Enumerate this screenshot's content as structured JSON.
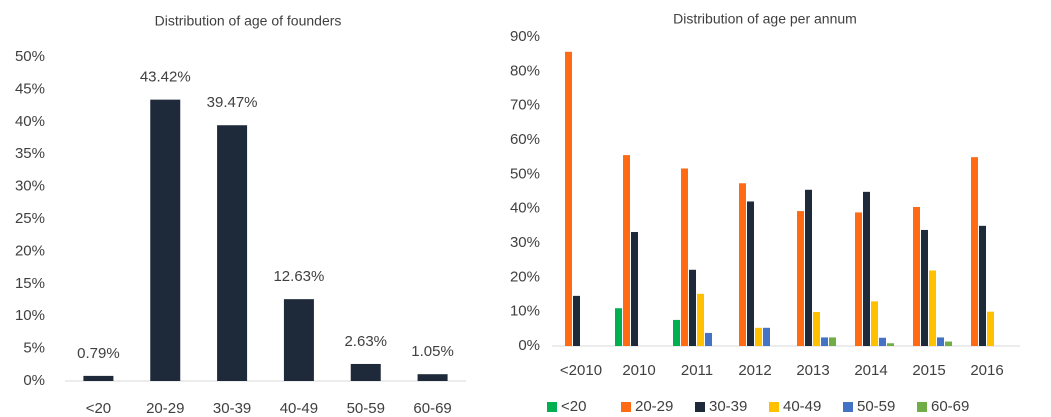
{
  "chart_data": [
    {
      "type": "bar",
      "title": "Distribution of age of founders",
      "categories": [
        "<20",
        "20-29",
        "30-39",
        "40-49",
        "50-59",
        "60-69"
      ],
      "values": [
        0.79,
        43.42,
        39.47,
        12.63,
        2.63,
        1.05
      ],
      "value_labels": [
        "0.79%",
        "43.42%",
        "39.47%",
        "12.63%",
        "2.63%",
        "1.05%"
      ],
      "color": "#1e2a3a",
      "ylim": [
        0,
        50
      ],
      "yticks": [
        {
          "value": 0,
          "label": "0%"
        },
        {
          "value": 5,
          "label": "5%"
        },
        {
          "value": 10,
          "label": "10%"
        },
        {
          "value": 15,
          "label": "15%"
        },
        {
          "value": 20,
          "label": "20%"
        },
        {
          "value": 25,
          "label": "25%"
        },
        {
          "value": 30,
          "label": "30%"
        },
        {
          "value": 35,
          "label": "35%"
        },
        {
          "value": 40,
          "label": "40%"
        },
        {
          "value": 45,
          "label": "45%"
        },
        {
          "value": 50,
          "label": "50%"
        }
      ],
      "grid": false
    },
    {
      "type": "grouped_bar",
      "title": "Distribution of age per annum",
      "categories": [
        "<2010",
        "2010",
        "2011",
        "2012",
        "2013",
        "2014",
        "2015",
        "2016"
      ],
      "series": [
        {
          "name": "<20",
          "color": "#00b050",
          "values": [
            0,
            11,
            7.6,
            0,
            0,
            0,
            0,
            0
          ]
        },
        {
          "name": "20-29",
          "color": "#ff6a13",
          "values": [
            85.7,
            55.6,
            51.7,
            47.4,
            39.3,
            38.9,
            40.5,
            55
          ]
        },
        {
          "name": "30-39",
          "color": "#1e2a3a",
          "values": [
            14.6,
            33.2,
            22.2,
            42.1,
            45.5,
            44.9,
            33.8,
            35
          ]
        },
        {
          "name": "40-49",
          "color": "#ffc000",
          "values": [
            0,
            0,
            15.2,
            5.3,
            9.9,
            13,
            22,
            10
          ]
        },
        {
          "name": "50-59",
          "color": "#4472c4",
          "values": [
            0,
            0,
            3.8,
            5.3,
            2.5,
            2.4,
            2.5,
            0
          ]
        },
        {
          "name": "60-69",
          "color": "#70ad47",
          "values": [
            0,
            0,
            0,
            0,
            2.5,
            0.8,
            1.3,
            0
          ]
        }
      ],
      "ylim": [
        0,
        90
      ],
      "yticks": [
        {
          "value": 0,
          "label": "0%"
        },
        {
          "value": 10,
          "label": "10%"
        },
        {
          "value": 20,
          "label": "20%"
        },
        {
          "value": 30,
          "label": "30%"
        },
        {
          "value": 40,
          "label": "40%"
        },
        {
          "value": 50,
          "label": "50%"
        },
        {
          "value": 60,
          "label": "60%"
        },
        {
          "value": 70,
          "label": "70%"
        },
        {
          "value": 80,
          "label": "80%"
        },
        {
          "value": 90,
          "label": "90%"
        }
      ],
      "grid": false,
      "legend": "bottom"
    }
  ]
}
